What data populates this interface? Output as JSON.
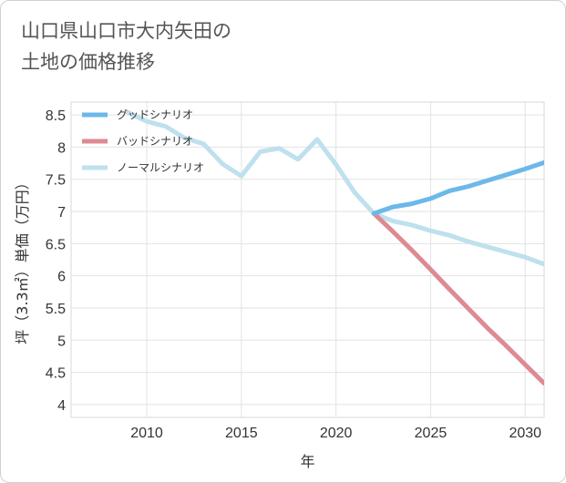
{
  "chart_data": {
    "type": "line",
    "title": "山口県山口市大内矢田の\n土地の価格推移",
    "xlabel": "年",
    "ylabel": "坪（3.3㎡）単価（万円）",
    "xlim": [
      2006,
      2031
    ],
    "ylim": [
      3.8,
      8.7
    ],
    "x_ticks": [
      2010,
      2015,
      2020,
      2025,
      2030
    ],
    "y_ticks": [
      4,
      4.5,
      5,
      5.5,
      6,
      6.5,
      7,
      7.5,
      8,
      8.5
    ],
    "grid": true,
    "legend_placement": "top-left",
    "series": [
      {
        "name": "グッドシナリオ",
        "color": "#6cb8ea",
        "x": [
          2022,
          2023,
          2024,
          2025,
          2026,
          2027,
          2028,
          2029,
          2030,
          2031
        ],
        "values": [
          6.97,
          7.07,
          7.12,
          7.2,
          7.32,
          7.39,
          7.48,
          7.57,
          7.66,
          7.76
        ]
      },
      {
        "name": "バッドシナリオ",
        "color": "#de8a92",
        "x": [
          2022,
          2023,
          2024,
          2025,
          2026,
          2027,
          2028,
          2029,
          2030,
          2031
        ],
        "values": [
          6.97,
          6.69,
          6.4,
          6.1,
          5.79,
          5.49,
          5.19,
          4.91,
          4.62,
          4.33
        ]
      },
      {
        "name": "ノーマルシナリオ",
        "color": "#bfe0ee",
        "x": [
          2009,
          2010,
          2011,
          2012,
          2013,
          2014,
          2015,
          2016,
          2017,
          2018,
          2019,
          2020,
          2021,
          2022,
          2023,
          2024,
          2025,
          2026,
          2027,
          2028,
          2029,
          2030,
          2031
        ],
        "values": [
          8.54,
          8.4,
          8.32,
          8.14,
          8.05,
          7.74,
          7.55,
          7.93,
          7.98,
          7.81,
          8.12,
          7.73,
          7.29,
          6.97,
          6.85,
          6.79,
          6.7,
          6.63,
          6.53,
          6.45,
          6.37,
          6.29,
          6.18
        ]
      }
    ]
  }
}
